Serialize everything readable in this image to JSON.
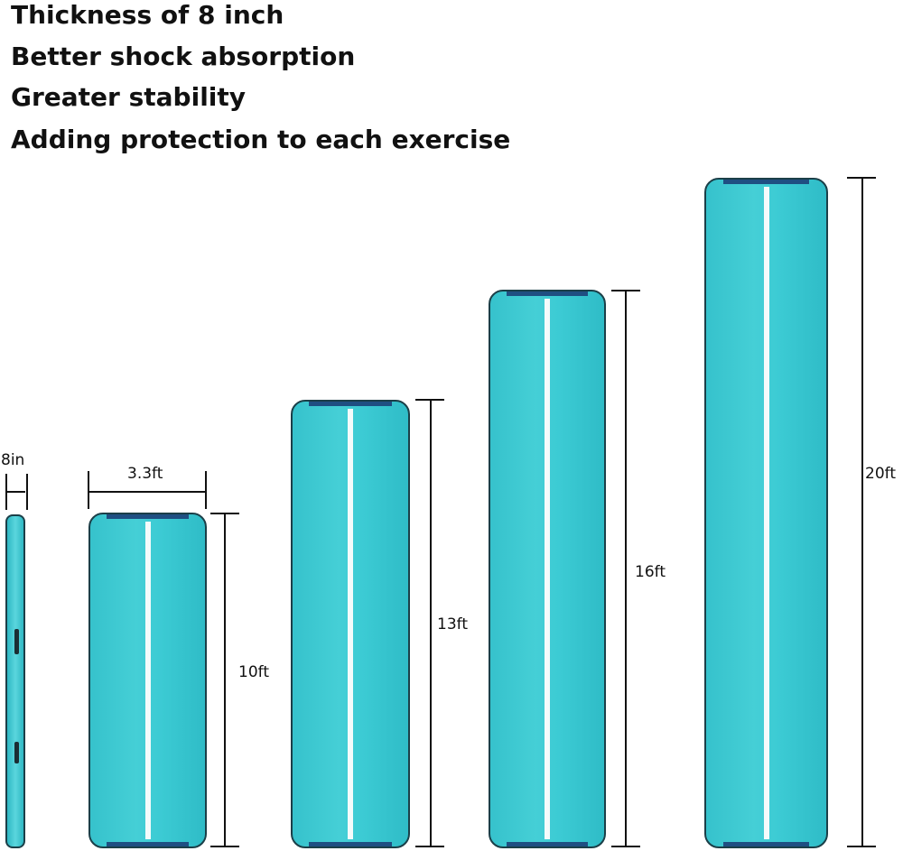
{
  "features": [
    "Thickness of 8 inch",
    "Better shock absorption",
    "Greater stability",
    "Adding protection to each exercise"
  ],
  "dimensions": {
    "thickness": "8in",
    "width": "3.3ft",
    "lengths": [
      "10ft",
      "13ft",
      "16ft",
      "20ft"
    ]
  },
  "colors": {
    "mat": "#3cc6cf",
    "border": "#1b3f48",
    "cap": "#1f4f82",
    "stripe": "#f4fbfb"
  }
}
